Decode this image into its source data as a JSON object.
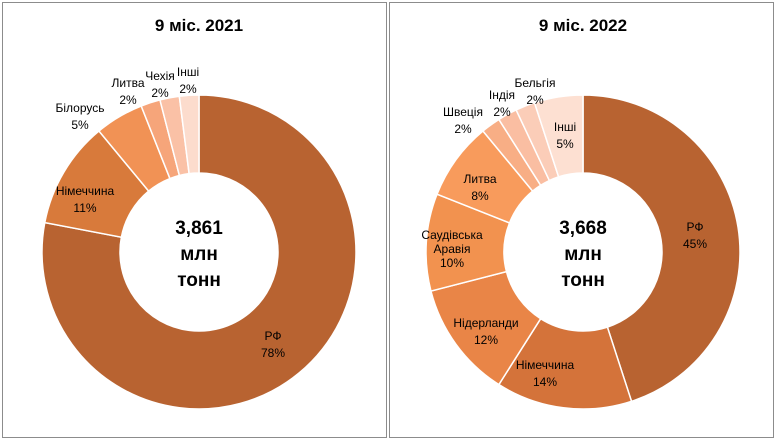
{
  "chart_data": [
    {
      "type": "pie",
      "title": "9 міс. 2021",
      "center_label": [
        "3,861",
        "млн",
        "тонн"
      ],
      "slices": [
        {
          "name": "РФ",
          "value": 78,
          "label": "78%",
          "color": "#B86331"
        },
        {
          "name": "Німеччина",
          "value": 11,
          "label": "11%",
          "color": "#D87A3B"
        },
        {
          "name": "Білорусь",
          "value": 5,
          "label": "5%",
          "color": "#F19255"
        },
        {
          "name": "Литва",
          "value": 2,
          "label": "2%",
          "color": "#F6A57A"
        },
        {
          "name": "Чехія",
          "value": 2,
          "label": "2%",
          "color": "#FAC1A6"
        },
        {
          "name": "Інші",
          "value": 2,
          "label": "2%",
          "color": "#FCDCCD"
        }
      ]
    },
    {
      "type": "pie",
      "title": "9 міс. 2022",
      "center_label": [
        "3,668",
        "млн",
        "тонн"
      ],
      "slices": [
        {
          "name": "РФ",
          "value": 45,
          "label": "45%",
          "color": "#B86331"
        },
        {
          "name": "Німеччина",
          "value": 14,
          "label": "14%",
          "color": "#D4733A"
        },
        {
          "name": "Нідерланди",
          "value": 12,
          "label": "12%",
          "color": "#E98547"
        },
        {
          "name": "Саудівська Аравія",
          "value": 10,
          "label": "10%",
          "color": "#F2924F"
        },
        {
          "name": "Литва",
          "value": 8,
          "label": "8%",
          "color": "#F89B5C"
        },
        {
          "name": "Швеція",
          "value": 2,
          "label": "2%",
          "color": "#F8AE85"
        },
        {
          "name": "Індія",
          "value": 2,
          "label": "2%",
          "color": "#FABEA2"
        },
        {
          "name": "Бельгія",
          "value": 2,
          "label": "2%",
          "color": "#FBCDB8"
        },
        {
          "name": "Інші",
          "value": 5,
          "label": "5%",
          "color": "#FDE0D2"
        }
      ]
    }
  ]
}
